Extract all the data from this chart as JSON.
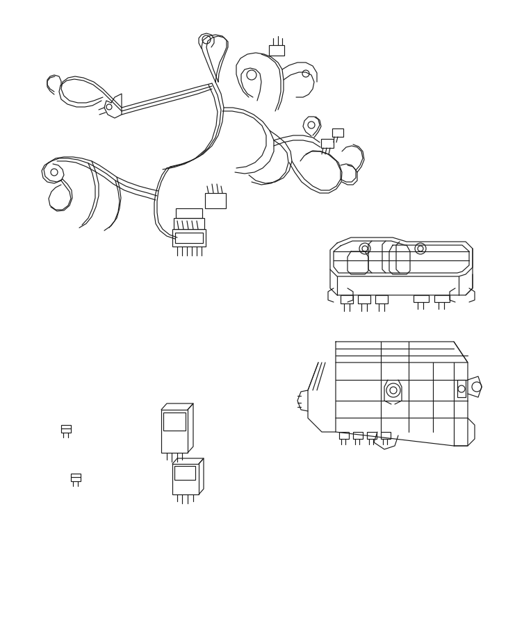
{
  "bg_color": "#ffffff",
  "line_color": "#1a1a1a",
  "lw": 0.85,
  "fig_width": 7.41,
  "fig_height": 9.0,
  "dpi": 100,
  "harness_color": "#1a1a1a",
  "box_color": "#1a1a1a"
}
